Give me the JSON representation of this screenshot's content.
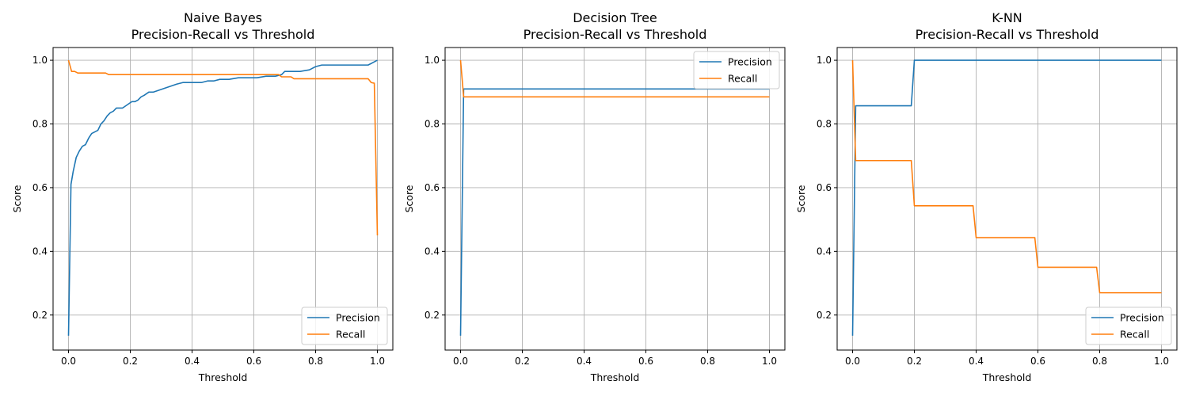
{
  "colors": {
    "precision": "#1f77b4",
    "recall": "#ff7f0e"
  },
  "chart_data": [
    {
      "type": "line",
      "title": "Naive Bayes",
      "subtitle": "Precision-Recall vs Threshold",
      "xlabel": "Threshold",
      "ylabel": "Score",
      "xlim": [
        -0.05,
        1.05
      ],
      "ylim": [
        0.09,
        1.04
      ],
      "xticks": [
        0.0,
        0.2,
        0.4,
        0.6,
        0.8,
        1.0
      ],
      "xtick_labels": [
        "0.0",
        "0.2",
        "0.4",
        "0.6",
        "0.8",
        "1.0"
      ],
      "yticks": [
        0.2,
        0.4,
        0.6,
        0.8,
        1.0
      ],
      "ytick_labels": [
        "0.2",
        "0.4",
        "0.6",
        "0.8",
        "1.0"
      ],
      "grid": true,
      "legend_position": "bottom-right",
      "series": [
        {
          "name": "Precision",
          "x": [
            0.0,
            0.008,
            0.015,
            0.025,
            0.035,
            0.045,
            0.055,
            0.065,
            0.075,
            0.085,
            0.095,
            0.105,
            0.115,
            0.125,
            0.135,
            0.145,
            0.155,
            0.165,
            0.175,
            0.19,
            0.205,
            0.215,
            0.225,
            0.235,
            0.245,
            0.26,
            0.275,
            0.29,
            0.305,
            0.32,
            0.335,
            0.35,
            0.37,
            0.4,
            0.43,
            0.45,
            0.47,
            0.49,
            0.52,
            0.55,
            0.58,
            0.61,
            0.64,
            0.67,
            0.69,
            0.7,
            0.72,
            0.75,
            0.78,
            0.8,
            0.82,
            0.85,
            0.88,
            0.91,
            0.94,
            0.97,
            0.98,
            0.99,
            1.0
          ],
          "y": [
            0.135,
            0.61,
            0.65,
            0.695,
            0.715,
            0.73,
            0.735,
            0.755,
            0.77,
            0.775,
            0.78,
            0.8,
            0.81,
            0.825,
            0.835,
            0.84,
            0.85,
            0.85,
            0.85,
            0.86,
            0.87,
            0.87,
            0.875,
            0.885,
            0.89,
            0.9,
            0.9,
            0.905,
            0.91,
            0.915,
            0.92,
            0.925,
            0.93,
            0.93,
            0.93,
            0.935,
            0.935,
            0.94,
            0.94,
            0.945,
            0.945,
            0.945,
            0.95,
            0.95,
            0.955,
            0.965,
            0.965,
            0.965,
            0.97,
            0.98,
            0.985,
            0.985,
            0.985,
            0.985,
            0.985,
            0.985,
            0.99,
            0.995,
            1.0
          ]
        },
        {
          "name": "Recall",
          "x": [
            0.0,
            0.01,
            0.02,
            0.03,
            0.08,
            0.12,
            0.13,
            0.3,
            0.5,
            0.68,
            0.69,
            0.72,
            0.73,
            0.8,
            0.9,
            0.97,
            0.98,
            0.99,
            1.0
          ],
          "y": [
            1.0,
            0.965,
            0.965,
            0.96,
            0.96,
            0.96,
            0.955,
            0.955,
            0.955,
            0.955,
            0.948,
            0.948,
            0.942,
            0.942,
            0.942,
            0.942,
            0.93,
            0.928,
            0.45
          ]
        }
      ]
    },
    {
      "type": "line",
      "title": "Decision Tree",
      "subtitle": "Precision-Recall vs Threshold",
      "xlabel": "Threshold",
      "ylabel": "Score",
      "xlim": [
        -0.05,
        1.05
      ],
      "ylim": [
        0.09,
        1.04
      ],
      "xticks": [
        0.0,
        0.2,
        0.4,
        0.6,
        0.8,
        1.0
      ],
      "xtick_labels": [
        "0.0",
        "0.2",
        "0.4",
        "0.6",
        "0.8",
        "1.0"
      ],
      "yticks": [
        0.2,
        0.4,
        0.6,
        0.8,
        1.0
      ],
      "ytick_labels": [
        "0.2",
        "0.4",
        "0.6",
        "0.8",
        "1.0"
      ],
      "grid": true,
      "legend_position": "top-right",
      "series": [
        {
          "name": "Precision",
          "x": [
            0.0,
            0.01,
            1.0
          ],
          "y": [
            0.135,
            0.91,
            0.91
          ]
        },
        {
          "name": "Recall",
          "x": [
            0.0,
            0.01,
            1.0
          ],
          "y": [
            1.0,
            0.885,
            0.885
          ]
        }
      ]
    },
    {
      "type": "line",
      "title": "K-NN",
      "subtitle": "Precision-Recall vs Threshold",
      "xlabel": "Threshold",
      "ylabel": "Score",
      "xlim": [
        -0.05,
        1.05
      ],
      "ylim": [
        0.09,
        1.04
      ],
      "xticks": [
        0.0,
        0.2,
        0.4,
        0.6,
        0.8,
        1.0
      ],
      "xtick_labels": [
        "0.0",
        "0.2",
        "0.4",
        "0.6",
        "0.8",
        "1.0"
      ],
      "yticks": [
        0.2,
        0.4,
        0.6,
        0.8,
        1.0
      ],
      "ytick_labels": [
        "0.2",
        "0.4",
        "0.6",
        "0.8",
        "1.0"
      ],
      "grid": true,
      "legend_position": "bottom-right",
      "series": [
        {
          "name": "Precision",
          "x": [
            0.0,
            0.01,
            0.19,
            0.2,
            1.0
          ],
          "y": [
            0.135,
            0.857,
            0.857,
            1.0,
            1.0
          ]
        },
        {
          "name": "Recall",
          "x": [
            0.0,
            0.01,
            0.19,
            0.2,
            0.39,
            0.4,
            0.59,
            0.6,
            0.79,
            0.8,
            1.0
          ],
          "y": [
            1.0,
            0.685,
            0.685,
            0.543,
            0.543,
            0.443,
            0.443,
            0.35,
            0.35,
            0.27,
            0.27
          ]
        }
      ]
    }
  ]
}
